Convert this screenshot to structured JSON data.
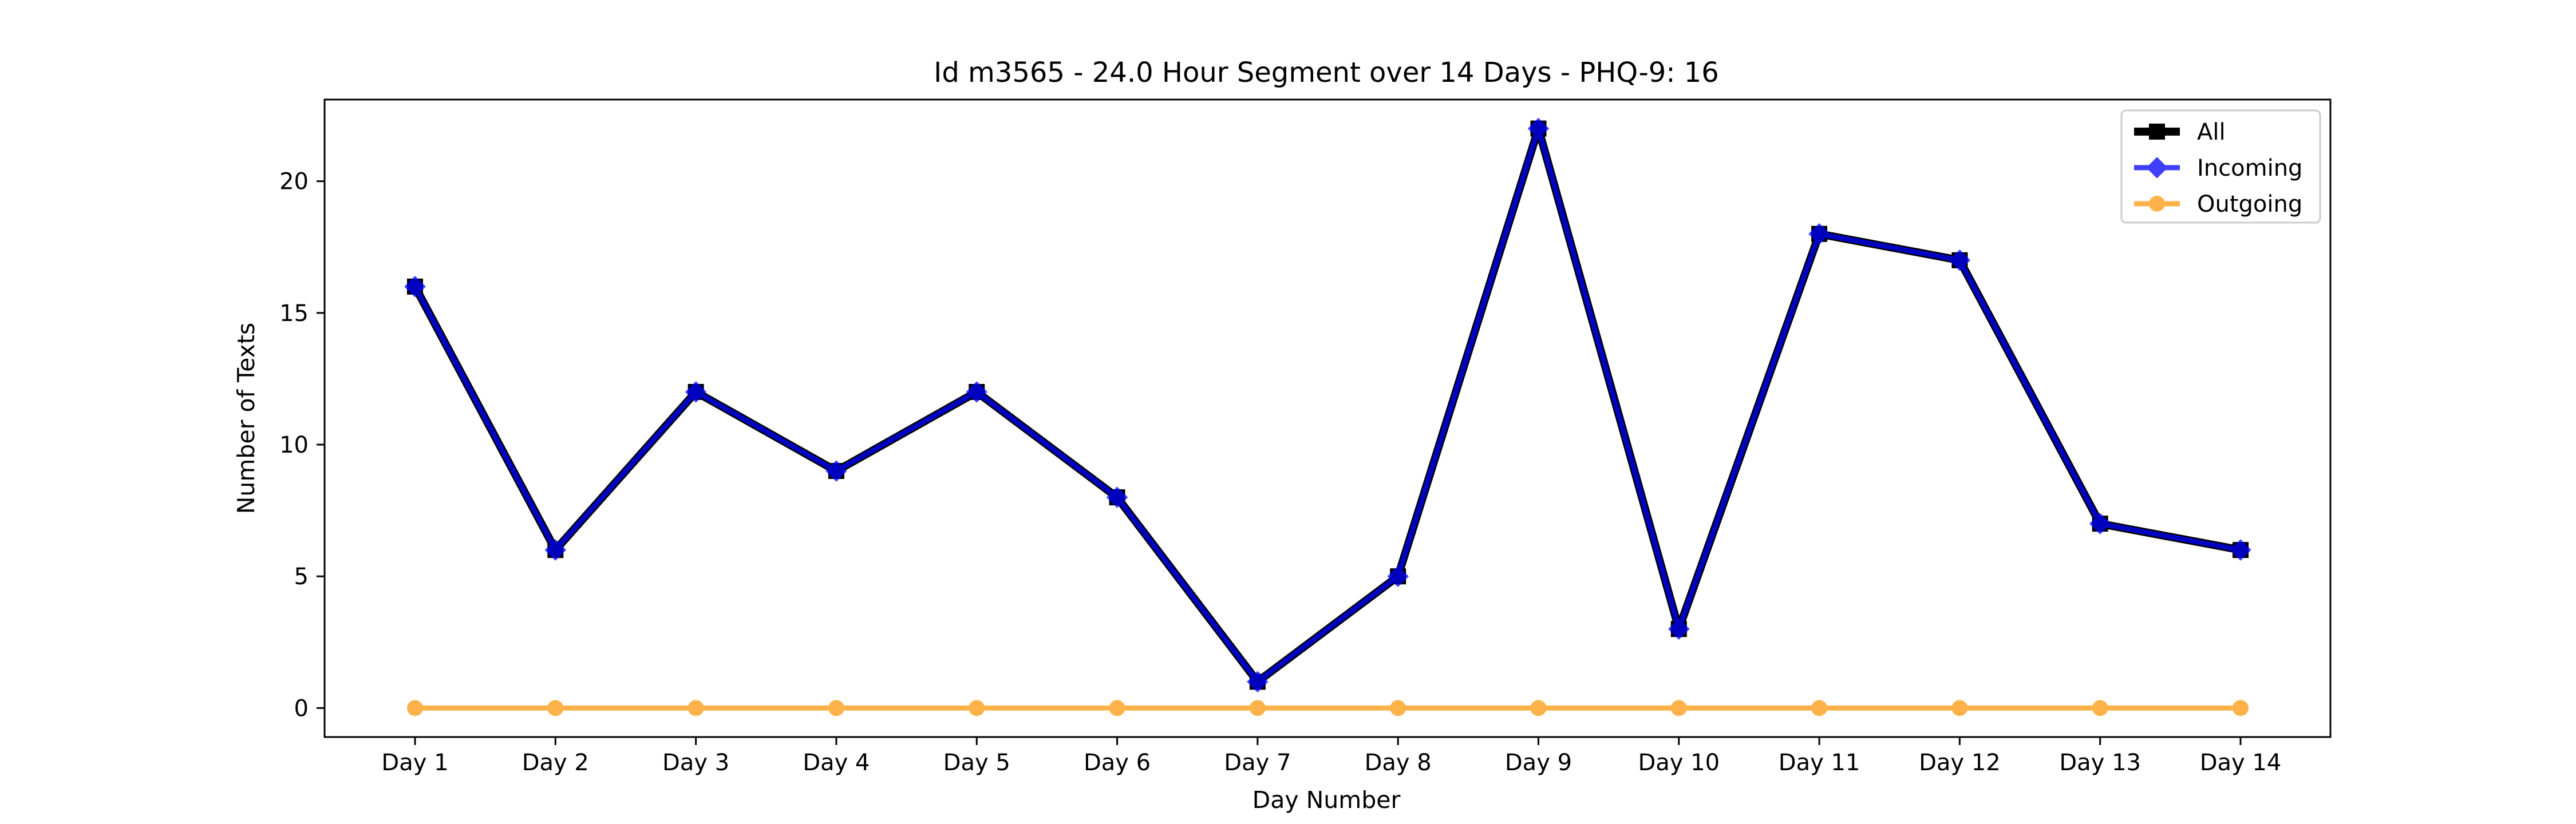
{
  "chart_data": {
    "type": "line",
    "title": "Id m3565 - 24.0 Hour Segment over 14 Days - PHQ-9: 16",
    "xlabel": "Day Number",
    "ylabel": "Number of Texts",
    "categories": [
      "Day 1",
      "Day 2",
      "Day 3",
      "Day 4",
      "Day 5",
      "Day 6",
      "Day 7",
      "Day 8",
      "Day 9",
      "Day 10",
      "Day 11",
      "Day 12",
      "Day 13",
      "Day 14"
    ],
    "ylim": [
      -1.1,
      23.1
    ],
    "yticks": [
      0,
      5,
      10,
      15,
      20
    ],
    "ytick_labels": [
      "0",
      "5",
      "10",
      "15",
      "20"
    ],
    "grid": false,
    "legend_position": "top-right",
    "series": [
      {
        "name": "All",
        "color": "#000000",
        "marker": "square",
        "values": [
          16,
          6,
          12,
          9,
          12,
          8,
          1,
          5,
          22,
          3,
          18,
          17,
          7,
          6
        ]
      },
      {
        "name": "Incoming",
        "color": "#0000ff",
        "marker": "diamond",
        "values": [
          16,
          6,
          12,
          9,
          12,
          8,
          1,
          5,
          22,
          3,
          18,
          17,
          7,
          6
        ]
      },
      {
        "name": "Outgoing",
        "color": "#ff9f1c",
        "marker": "circle",
        "values": [
          0,
          0,
          0,
          0,
          0,
          0,
          0,
          0,
          0,
          0,
          0,
          0,
          0,
          0
        ]
      }
    ]
  }
}
